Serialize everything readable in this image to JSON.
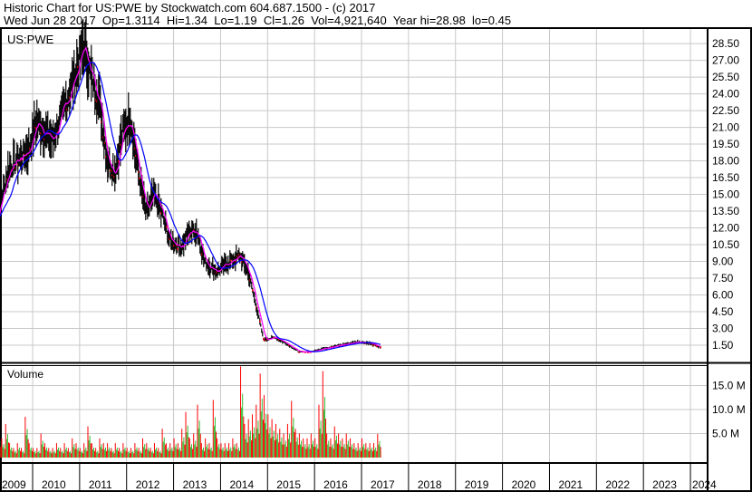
{
  "header": {
    "line1": "Historic Chart for US:PWE by Stockwatch.com 604.687.1500 - (c) 2017",
    "line2": "Wed Jun 28 2017  Op=1.3114  Hi=1.34  Lo=1.19  Cl=1.26  Vol=4,921,640  Year hi=28.98  lo=0.45"
  },
  "chart_data": [
    {
      "type": "line",
      "title": "US:PWE",
      "ylim": [
        0,
        29.5
      ],
      "y_ticks": [
        "28.50",
        "27.00",
        "25.50",
        "24.00",
        "22.50",
        "21.00",
        "19.50",
        "18.00",
        "16.50",
        "15.00",
        "13.50",
        "12.00",
        "10.50",
        "9.00",
        "7.50",
        "6.00",
        "4.50",
        "3.00",
        "1.50"
      ],
      "grid": true,
      "colors": {
        "bars": "#000000",
        "down": "#ff0000",
        "ma_short": "#ff00ff",
        "ma_long": "#0000ff"
      },
      "x": [
        "2009-03",
        "2009-07",
        "2009-12",
        "2010-02",
        "2010-06",
        "2010-09",
        "2010-12",
        "2011-02",
        "2011-04",
        "2011-06",
        "2011-08",
        "2011-10",
        "2011-12",
        "2012-02",
        "2012-04",
        "2012-06",
        "2012-08",
        "2012-10",
        "2012-12",
        "2013-03",
        "2013-05",
        "2013-07",
        "2013-09",
        "2013-12",
        "2014-03",
        "2014-06",
        "2014-08",
        "2014-10",
        "2014-12",
        "2015-03",
        "2015-06",
        "2015-09",
        "2015-12",
        "2016-03",
        "2016-06",
        "2016-09",
        "2016-12",
        "2017-03",
        "2017-06"
      ],
      "close": [
        12.0,
        17.4,
        19.0,
        21.5,
        19.8,
        22.7,
        25.9,
        28.3,
        25.5,
        23.5,
        18.2,
        17.0,
        20.6,
        21.9,
        17.0,
        13.3,
        15.0,
        13.3,
        10.9,
        10.3,
        11.7,
        11.7,
        8.9,
        8.1,
        8.9,
        9.5,
        8.1,
        5.2,
        2.0,
        2.2,
        1.6,
        0.9,
        0.9,
        1.2,
        1.4,
        1.6,
        1.8,
        1.7,
        1.26
      ]
    },
    {
      "type": "bar",
      "title": "Volume",
      "y_ticks": [
        "15.0 M",
        "10.0 M",
        "5.0 M"
      ],
      "ylim": [
        0,
        19.5
      ],
      "x_start": "2009-03",
      "interval": "month",
      "colors": {
        "up": "#33bb33",
        "down": "#ff0000"
      },
      "values": [
        3,
        5,
        4,
        7,
        3,
        2,
        3,
        2,
        8.5,
        3,
        2,
        2,
        5,
        3,
        2,
        2,
        3,
        2,
        3,
        2,
        4,
        3,
        2,
        3,
        6.5,
        3,
        2,
        4,
        3,
        3,
        2,
        3,
        2,
        3,
        2,
        2,
        3,
        2,
        4,
        3,
        2,
        3,
        2,
        6,
        3,
        3,
        4,
        3,
        6,
        9.5,
        4,
        5,
        11,
        3,
        4,
        3,
        12,
        4,
        3,
        3,
        3,
        4,
        3,
        19,
        7,
        8,
        9,
        11,
        17.5,
        13,
        9,
        8,
        7,
        6,
        5,
        7,
        11.8,
        6,
        5,
        4,
        4,
        5,
        4,
        11,
        18,
        5,
        4,
        6.5,
        5,
        4,
        5,
        4,
        3,
        3,
        4,
        3,
        3,
        3,
        4.9
      ],
      "x_labels": [
        "2009",
        "2010",
        "2011",
        "2012",
        "2013",
        "2014",
        "2015",
        "2016",
        "2017",
        "2018",
        "2019",
        "2020",
        "2021",
        "2022",
        "2023",
        "2024"
      ]
    }
  ]
}
